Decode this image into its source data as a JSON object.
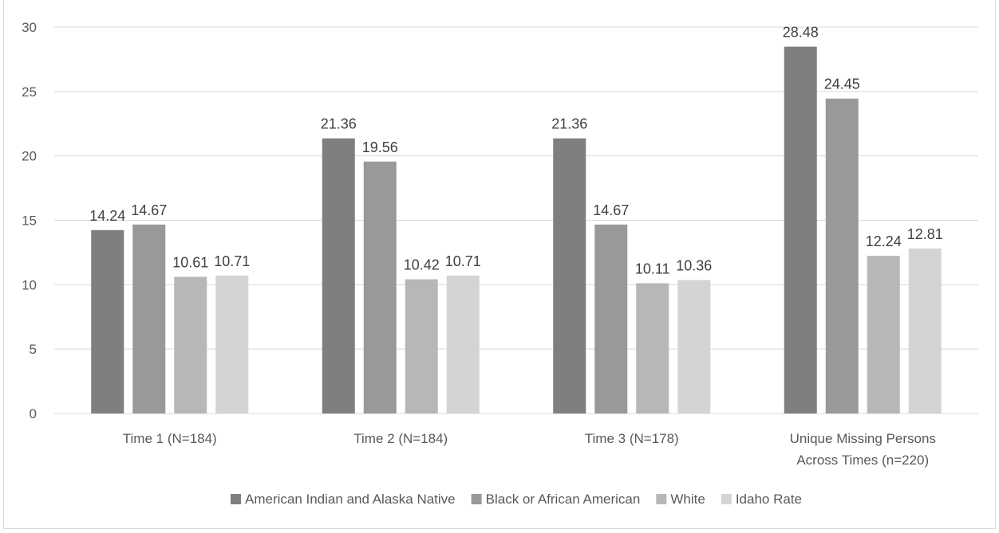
{
  "chart_data": {
    "type": "bar",
    "categories": [
      [
        "Time 1 (N=184)"
      ],
      [
        "Time 2 (N=184)"
      ],
      [
        "Time 3 (N=178)"
      ],
      [
        "Unique Missing Persons",
        "Across Times (n=220)"
      ]
    ],
    "series": [
      {
        "name": "American Indian and Alaska Native",
        "color": "#7f7f7f",
        "values": [
          14.24,
          21.36,
          21.36,
          28.48
        ]
      },
      {
        "name": "Black or African American",
        "color": "#999999",
        "values": [
          14.67,
          19.56,
          14.67,
          24.45
        ]
      },
      {
        "name": "White",
        "color": "#b7b7b7",
        "values": [
          10.61,
          10.42,
          10.11,
          12.24
        ]
      },
      {
        "name": "Idaho Rate",
        "color": "#d4d4d4",
        "values": [
          10.71,
          10.71,
          10.36,
          12.81
        ]
      }
    ],
    "ylim": [
      0,
      30
    ],
    "yticks": [
      0,
      5,
      10,
      15,
      20,
      25,
      30
    ],
    "grid": true,
    "legend": "bottom",
    "data_labels": true
  }
}
